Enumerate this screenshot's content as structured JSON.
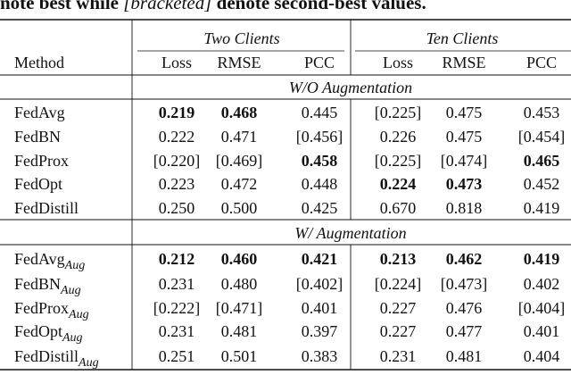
{
  "caption": {
    "prefix": "note best while ",
    "emphasis": "[bracketed]",
    "suffix": " denote second-best values."
  },
  "table": {
    "method_header": "Method",
    "groups": [
      "Two Clients",
      "Ten Clients"
    ],
    "metrics": [
      "Loss",
      "RMSE",
      "PCC",
      "Loss",
      "RMSE",
      "PCC"
    ],
    "sections": [
      {
        "title": "W/O Augmentation",
        "rows": [
          {
            "method": "FedAvg",
            "cells": [
              "0.219",
              "0.468",
              "0.445",
              "[0.225]",
              "0.475",
              "0.453"
            ],
            "bold": [
              true,
              true,
              false,
              false,
              false,
              false
            ]
          },
          {
            "method": "FedBN",
            "cells": [
              "0.222",
              "0.471",
              "[0.456]",
              "0.226",
              "0.475",
              "[0.454]"
            ],
            "bold": [
              false,
              false,
              false,
              false,
              false,
              false
            ]
          },
          {
            "method": "FedProx",
            "cells": [
              "[0.220]",
              "[0.469]",
              "0.458",
              "[0.225]",
              "[0.474]",
              "0.465"
            ],
            "bold": [
              false,
              false,
              true,
              false,
              false,
              true
            ]
          },
          {
            "method": "FedOpt",
            "cells": [
              "0.223",
              "0.472",
              "0.448",
              "0.224",
              "0.473",
              "0.452"
            ],
            "bold": [
              false,
              false,
              false,
              true,
              true,
              false
            ]
          },
          {
            "method": "FedDistill",
            "cells": [
              "0.250",
              "0.500",
              "0.425",
              "0.670",
              "0.818",
              "0.419"
            ],
            "bold": [
              false,
              false,
              false,
              false,
              false,
              false
            ]
          }
        ]
      },
      {
        "title": "W/ Augmentation",
        "rows": [
          {
            "method": "FedAvg",
            "subscript": "Aug",
            "cells": [
              "0.212",
              "0.460",
              "0.421",
              "0.213",
              "0.462",
              "0.419"
            ],
            "bold": [
              true,
              true,
              true,
              true,
              true,
              true
            ]
          },
          {
            "method": "FedBN",
            "subscript": "Aug",
            "cells": [
              "0.231",
              "0.480",
              "[0.402]",
              "[0.224]",
              "[0.473]",
              "0.402"
            ],
            "bold": [
              false,
              false,
              false,
              false,
              false,
              false
            ]
          },
          {
            "method": "FedProx",
            "subscript": "Aug",
            "cells": [
              "[0.222]",
              "[0.471]",
              "0.401",
              "0.227",
              "0.476",
              "[0.404]"
            ],
            "bold": [
              false,
              false,
              false,
              false,
              false,
              false
            ]
          },
          {
            "method": "FedOpt",
            "subscript": "Aug",
            "cells": [
              "0.231",
              "0.481",
              "0.397",
              "0.227",
              "0.477",
              "0.401"
            ],
            "bold": [
              false,
              false,
              false,
              false,
              false,
              false
            ]
          },
          {
            "method": "FedDistill",
            "subscript": "Aug",
            "cells": [
              "0.251",
              "0.501",
              "0.383",
              "0.231",
              "0.481",
              "0.404"
            ],
            "bold": [
              false,
              false,
              false,
              false,
              false,
              false
            ]
          }
        ]
      }
    ]
  }
}
